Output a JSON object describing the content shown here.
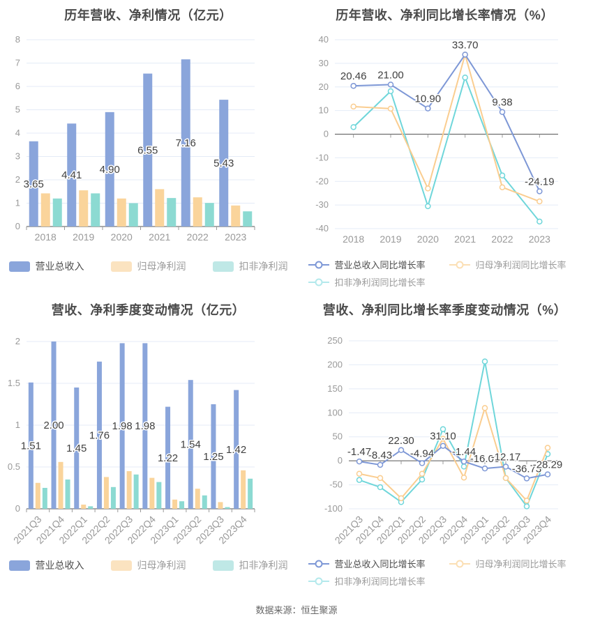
{
  "page": {
    "background": "#ffffff",
    "footer": "数据来源：恒生聚源"
  },
  "colors": {
    "grid": "#e4ebf7",
    "axis": "#555555",
    "tick_mark": "#999999",
    "axis_label": "#999999",
    "value_label": "#404040",
    "title": "#4a4a4a",
    "legend_active_text": "#4d4d4d",
    "legend_dim_text": "#9b9b9b",
    "bar_blue": "#8aa5db",
    "bar_orange": "#fad49b",
    "bar_teal": "#8cdad2",
    "line_blue": "#7d97d6",
    "line_orange": "#facd90",
    "line_teal": "#6fd6da"
  },
  "chart_data": [
    {
      "type": "bar",
      "title": "历年营收、净利情况（亿元）",
      "xlabel": "",
      "ylabel": "",
      "grid": true,
      "legend_position": "bottom",
      "categories": [
        "2018",
        "2019",
        "2020",
        "2021",
        "2022",
        "2023"
      ],
      "ylim": [
        0,
        8
      ],
      "yticks": [
        0,
        1,
        2,
        3,
        4,
        5,
        6,
        7,
        8
      ],
      "series": [
        {
          "name": "营业总收入",
          "color": "#8aa5db",
          "legend_color": "#8aa5db",
          "values": [
            3.65,
            4.41,
            4.9,
            6.55,
            7.16,
            5.43
          ],
          "labels": [
            "3.65",
            "4.41",
            "4.90",
            "6.55",
            "7.16",
            "5.43"
          ]
        },
        {
          "name": "归母净利润",
          "color": "#fad49b",
          "legend_color": "#fbe3c0",
          "values": [
            1.42,
            1.55,
            1.2,
            1.6,
            1.25,
            0.9
          ]
        },
        {
          "name": "扣非净利润",
          "color": "#8cdad2",
          "legend_color": "#bfe8e6",
          "values": [
            1.2,
            1.42,
            1.0,
            1.22,
            1.01,
            0.65
          ]
        }
      ]
    },
    {
      "type": "line",
      "title": "历年营收、净利同比增长率情况（%）",
      "xlabel": "",
      "ylabel": "",
      "grid": true,
      "legend_position": "bottom",
      "categories": [
        "2018",
        "2019",
        "2020",
        "2021",
        "2022",
        "2023"
      ],
      "ylim": [
        -40,
        40
      ],
      "yticks": [
        -40,
        -30,
        -20,
        -10,
        0,
        10,
        20,
        30,
        40
      ],
      "series": [
        {
          "name": "营业总收入同比增长率",
          "color": "#7d97d6",
          "legend_color": "#7d97d6",
          "values": [
            20.46,
            21.0,
            10.9,
            33.7,
            9.38,
            -24.19
          ],
          "labels": [
            "20.46",
            "21.00",
            "10.90",
            "33.70",
            "9.38",
            "-24.19"
          ]
        },
        {
          "name": "归母净利润同比增长率",
          "color": "#facd90",
          "legend_color": "#fbdfb4",
          "values": [
            11.7,
            10.8,
            -23.0,
            33.7,
            -22.5,
            -28.5
          ]
        },
        {
          "name": "扣非净利润同比增长率",
          "color": "#6fd6da",
          "legend_color": "#b3e9ec",
          "values": [
            3.0,
            18.2,
            -30.5,
            24.0,
            -17.5,
            -37.0
          ]
        }
      ]
    },
    {
      "type": "bar",
      "title": "营收、净利季度变动情况（亿元）",
      "xlabel": "",
      "ylabel": "",
      "grid": true,
      "legend_position": "bottom",
      "categories": [
        "2021Q3",
        "2021Q4",
        "2022Q1",
        "2022Q2",
        "2022Q3",
        "2022Q4",
        "2023Q1",
        "2023Q2",
        "2023Q3",
        "2023Q4"
      ],
      "ylim": [
        0,
        2
      ],
      "yticks": [
        0,
        0.5,
        1,
        1.5,
        2
      ],
      "series": [
        {
          "name": "营业总收入",
          "color": "#8aa5db",
          "legend_color": "#8aa5db",
          "values": [
            1.51,
            2.0,
            1.45,
            1.76,
            1.98,
            1.98,
            1.22,
            1.54,
            1.25,
            1.42
          ],
          "labels": [
            "1.51",
            "2.00",
            "1.45",
            "1.76",
            "1.98",
            "1.98",
            "1.22",
            "1.54",
            "1.25",
            "1.42"
          ]
        },
        {
          "name": "归母净利润",
          "color": "#fad49b",
          "legend_color": "#fbe3c0",
          "values": [
            0.31,
            0.56,
            0.05,
            0.38,
            0.45,
            0.37,
            0.11,
            0.24,
            0.08,
            0.46
          ]
        },
        {
          "name": "扣非净利润",
          "color": "#8cdad2",
          "legend_color": "#bfe8e6",
          "values": [
            0.25,
            0.35,
            0.03,
            0.26,
            0.41,
            0.32,
            0.09,
            0.16,
            0.02,
            0.36
          ]
        }
      ]
    },
    {
      "type": "line",
      "title": "营收、净利同比增长率季度变动情况（%）",
      "xlabel": "",
      "ylabel": "",
      "grid": true,
      "legend_position": "bottom",
      "categories": [
        "2021Q3",
        "2021Q4",
        "2022Q1",
        "2022Q2",
        "2022Q3",
        "2022Q4",
        "2023Q1",
        "2023Q2",
        "2023Q3",
        "2023Q4"
      ],
      "ylim": [
        -100,
        250
      ],
      "yticks": [
        -100,
        -50,
        0,
        50,
        100,
        150,
        200,
        250
      ],
      "series": [
        {
          "name": "营业总收入同比增长率",
          "color": "#7d97d6",
          "legend_color": "#7d97d6",
          "values": [
            -1.47,
            -8.43,
            22.3,
            -4.94,
            31.1,
            -1.44,
            -16.03,
            -12.17,
            -36.73,
            -28.29
          ],
          "labels": [
            "-1.47",
            "-8.43",
            "22.30",
            "-4.94",
            "31.10",
            "-1.44",
            "-16.03",
            "-12.17",
            "-36.73",
            "-28.29"
          ]
        },
        {
          "name": "归母净利润同比增长率",
          "color": "#facd90",
          "legend_color": "#fbdfb4",
          "values": [
            -27,
            -36,
            -78,
            -27,
            46,
            -35,
            110,
            -36,
            -83,
            27
          ]
        },
        {
          "name": "扣非净利润同比增长率",
          "color": "#6fd6da",
          "legend_color": "#b3e9ec",
          "values": [
            -40,
            -55,
            -86,
            -39,
            66,
            -12,
            207,
            -36,
            -95,
            14
          ]
        }
      ]
    }
  ]
}
